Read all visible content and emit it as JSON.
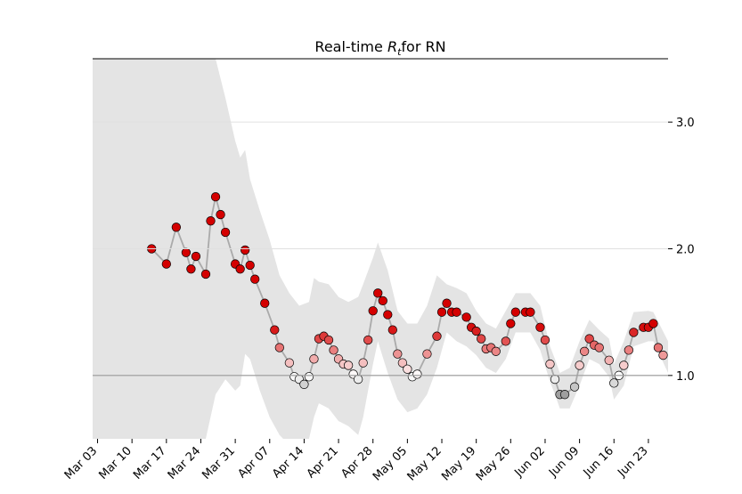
{
  "chart_data": {
    "type": "line",
    "title": {
      "before": "Real-time",
      "symbol": "R",
      "subscript": "t",
      "after": "for RN"
    },
    "x": [
      11,
      14,
      16,
      18,
      19,
      20,
      22,
      23,
      24,
      25,
      26,
      28,
      29,
      30,
      31,
      32,
      34,
      36,
      37,
      39,
      40,
      41,
      42,
      43,
      44,
      45,
      46,
      47,
      48,
      49,
      50,
      51,
      52,
      53,
      54,
      55,
      56,
      57,
      58,
      59,
      60,
      61,
      62,
      63,
      64,
      65,
      67,
      69,
      70,
      71,
      72,
      73,
      75,
      76,
      77,
      78,
      79,
      80,
      81,
      83,
      84,
      85,
      87,
      88,
      90,
      91,
      92,
      93,
      94,
      95,
      97,
      98,
      99,
      100,
      101,
      102,
      104,
      105,
      106,
      107,
      108,
      109,
      111,
      112,
      113,
      114,
      115
    ],
    "values": [
      2.0,
      1.88,
      2.17,
      1.97,
      1.84,
      1.94,
      1.8,
      2.22,
      2.41,
      2.27,
      2.13,
      1.88,
      1.84,
      1.99,
      1.87,
      1.76,
      1.57,
      1.36,
      1.22,
      1.1,
      0.99,
      0.97,
      0.93,
      0.99,
      1.13,
      1.29,
      1.31,
      1.28,
      1.2,
      1.13,
      1.09,
      1.08,
      1.01,
      0.97,
      1.1,
      1.28,
      1.51,
      1.65,
      1.59,
      1.48,
      1.36,
      1.17,
      1.1,
      1.05,
      0.99,
      1.01,
      1.17,
      1.31,
      1.5,
      1.57,
      1.5,
      1.5,
      1.46,
      1.38,
      1.35,
      1.29,
      1.21,
      1.22,
      1.19,
      1.27,
      1.41,
      1.5,
      1.5,
      1.5,
      1.38,
      1.28,
      1.09,
      0.97,
      0.85,
      0.85,
      0.91,
      1.08,
      1.19,
      1.29,
      1.24,
      1.22,
      1.12,
      0.94,
      1.0,
      1.08,
      1.2,
      1.34,
      1.38,
      1.38,
      1.41,
      1.22,
      1.16
    ],
    "line_color": "#aaaaaa",
    "cmap_stops": [
      {
        "value": 0.8,
        "color": "#7f7f7f"
      },
      {
        "value": 1.0,
        "color": "#ffffff"
      },
      {
        "value": 1.4,
        "color": "#d40000"
      }
    ],
    "band": {
      "color": "#e4e4e4",
      "x": [
        -1,
        22,
        24,
        26,
        28,
        29,
        30,
        31,
        33,
        35,
        37,
        39,
        41,
        43,
        44,
        45,
        47,
        49,
        51,
        53,
        54,
        56,
        57,
        59,
        61,
        63,
        65,
        67,
        69,
        71,
        73,
        75,
        77,
        79,
        81,
        83,
        85,
        88,
        90,
        92,
        93,
        94,
        96,
        98,
        100,
        102,
        104,
        105,
        107,
        109,
        112,
        113,
        116
      ],
      "high": [
        4.5,
        3.6,
        3.5,
        3.19,
        2.85,
        2.72,
        2.78,
        2.55,
        2.3,
        2.07,
        1.79,
        1.65,
        1.55,
        1.58,
        1.77,
        1.74,
        1.72,
        1.62,
        1.58,
        1.62,
        1.72,
        1.93,
        2.05,
        1.83,
        1.51,
        1.41,
        1.41,
        1.55,
        1.79,
        1.72,
        1.69,
        1.65,
        1.51,
        1.41,
        1.37,
        1.51,
        1.65,
        1.65,
        1.55,
        1.23,
        1.13,
        1.02,
        1.06,
        1.27,
        1.44,
        1.36,
        1.29,
        1.09,
        1.27,
        1.5,
        1.51,
        1.5,
        1.27
      ],
      "low": [
        0.3,
        0.5,
        0.85,
        0.97,
        0.88,
        0.92,
        1.17,
        1.13,
        0.88,
        0.67,
        0.53,
        0.45,
        0.5,
        0.5,
        0.67,
        0.78,
        0.74,
        0.64,
        0.6,
        0.53,
        0.67,
        1.09,
        1.27,
        1.02,
        0.81,
        0.71,
        0.74,
        0.85,
        1.06,
        1.34,
        1.27,
        1.23,
        1.16,
        1.06,
        1.02,
        1.13,
        1.34,
        1.34,
        1.2,
        0.95,
        0.85,
        0.74,
        0.74,
        0.92,
        1.13,
        1.09,
        0.99,
        0.81,
        0.92,
        1.23,
        1.27,
        1.27,
        1.02
      ]
    },
    "reference_line": 1,
    "xlim": [
      -1,
      116
    ],
    "xticks": [
      {
        "value": 0,
        "label": "Mar 03"
      },
      {
        "value": 7,
        "label": "Mar 10"
      },
      {
        "value": 14,
        "label": "Mar 17"
      },
      {
        "value": 21,
        "label": "Mar 24"
      },
      {
        "value": 28,
        "label": "Mar 31"
      },
      {
        "value": 35,
        "label": "Apr 07"
      },
      {
        "value": 42,
        "label": "Apr 14"
      },
      {
        "value": 49,
        "label": "Apr 21"
      },
      {
        "value": 56,
        "label": "Apr 28"
      },
      {
        "value": 63,
        "label": "May 05"
      },
      {
        "value": 70,
        "label": "May 12"
      },
      {
        "value": 77,
        "label": "May 19"
      },
      {
        "value": 84,
        "label": "May 26"
      },
      {
        "value": 91,
        "label": "Jun 02"
      },
      {
        "value": 98,
        "label": "Jun 09"
      },
      {
        "value": 105,
        "label": "Jun 16"
      },
      {
        "value": 112,
        "label": "Jun 23"
      }
    ],
    "ylim": [
      0.5,
      3.5
    ],
    "yticks": [
      {
        "value": 1,
        "label": "1.0"
      },
      {
        "value": 2,
        "label": "2.0"
      },
      {
        "value": 3,
        "label": "3.0"
      }
    ],
    "grid": true
  }
}
